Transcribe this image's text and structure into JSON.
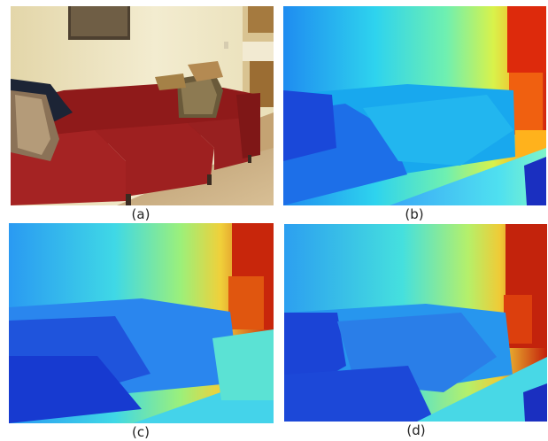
{
  "figure": {
    "panels": [
      {
        "id": "a",
        "caption": "(a)",
        "content": "rgb-photo"
      },
      {
        "id": "b",
        "caption": "(b)",
        "content": "ground-truth-depth"
      },
      {
        "id": "c",
        "caption": "(c)",
        "content": "predicted-depth-1"
      },
      {
        "id": "d",
        "caption": "(d)",
        "content": "predicted-depth-2"
      }
    ],
    "colors": {
      "wall": "#efe6c4",
      "sofa": "#a41f1f",
      "floor": "#c8a77a",
      "depth_near": "#1b3bd6",
      "depth_far": "#c41400"
    }
  }
}
